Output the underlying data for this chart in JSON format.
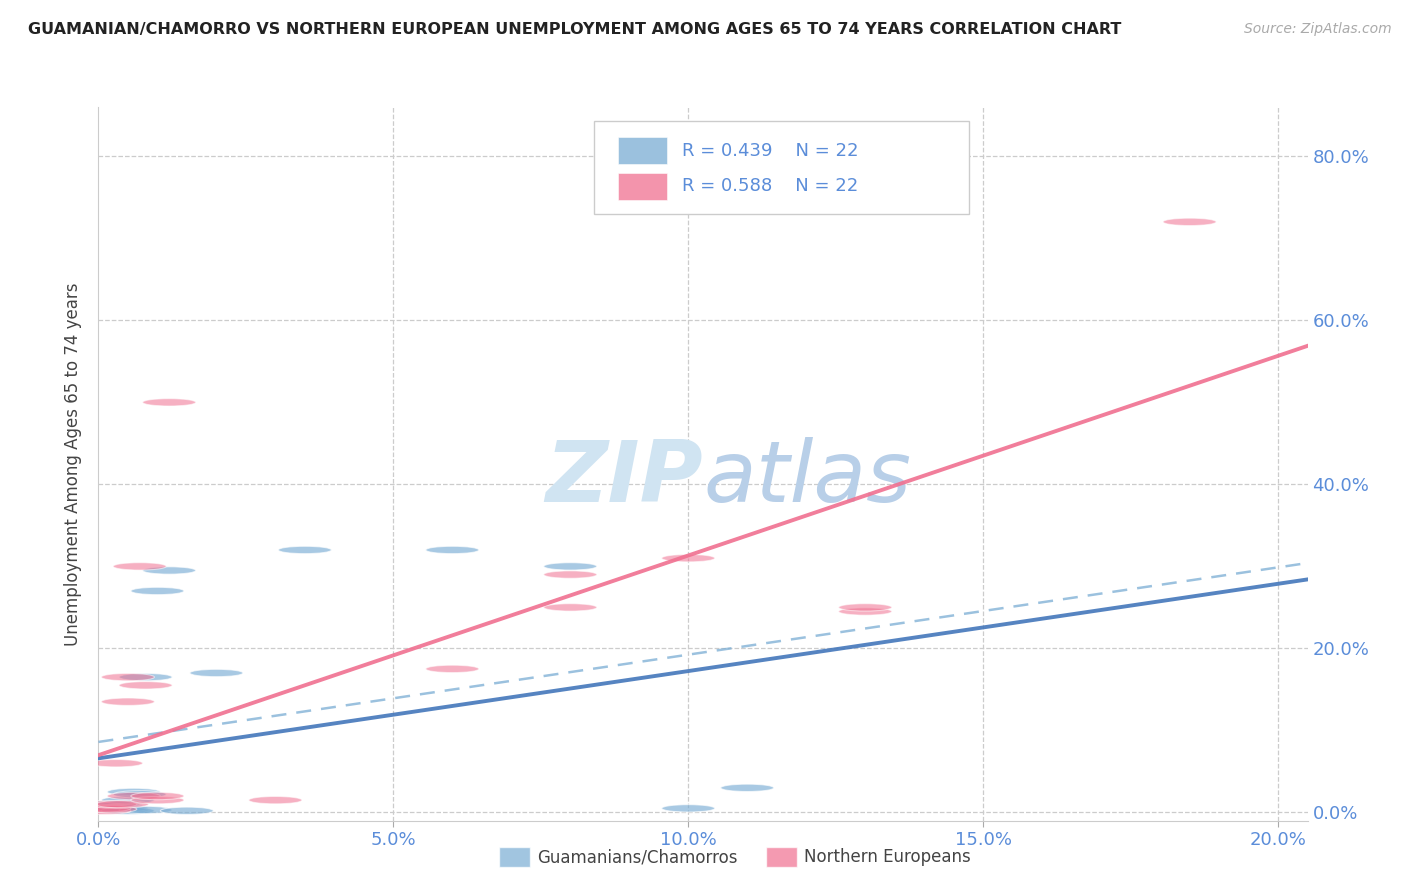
{
  "title": "GUAMANIAN/CHAMORRO VS NORTHERN EUROPEAN UNEMPLOYMENT AMONG AGES 65 TO 74 YEARS CORRELATION CHART",
  "source": "Source: ZipAtlas.com",
  "ylabel": "Unemployment Among Ages 65 to 74 years",
  "legend_label1": "Guamanians/Chamorros",
  "legend_label2": "Northern Europeans",
  "R1": "R = 0.439",
  "N1": "N = 22",
  "R2": "R = 0.588",
  "N2": "N = 22",
  "color_blue": "#7aadd4",
  "color_pink": "#f07090",
  "color_axis_text": "#5b8dd9",
  "watermark_color": "#d0e4f2",
  "blue_points": [
    [
      0.001,
      0.005
    ],
    [
      0.002,
      0.003
    ],
    [
      0.002,
      0.01
    ],
    [
      0.003,
      0.005
    ],
    [
      0.003,
      0.008
    ],
    [
      0.004,
      0.003
    ],
    [
      0.004,
      0.005
    ],
    [
      0.005,
      0.002
    ],
    [
      0.005,
      0.015
    ],
    [
      0.006,
      0.025
    ],
    [
      0.007,
      0.022
    ],
    [
      0.008,
      0.003
    ],
    [
      0.008,
      0.165
    ],
    [
      0.01,
      0.27
    ],
    [
      0.012,
      0.295
    ],
    [
      0.015,
      0.002
    ],
    [
      0.02,
      0.17
    ],
    [
      0.035,
      0.32
    ],
    [
      0.06,
      0.32
    ],
    [
      0.08,
      0.3
    ],
    [
      0.1,
      0.005
    ],
    [
      0.11,
      0.03
    ]
  ],
  "pink_points": [
    [
      0.001,
      0.002
    ],
    [
      0.001,
      0.005
    ],
    [
      0.002,
      0.004
    ],
    [
      0.002,
      0.01
    ],
    [
      0.003,
      0.06
    ],
    [
      0.004,
      0.01
    ],
    [
      0.005,
      0.135
    ],
    [
      0.005,
      0.165
    ],
    [
      0.006,
      0.02
    ],
    [
      0.007,
      0.3
    ],
    [
      0.008,
      0.155
    ],
    [
      0.01,
      0.015
    ],
    [
      0.01,
      0.02
    ],
    [
      0.012,
      0.5
    ],
    [
      0.03,
      0.015
    ],
    [
      0.06,
      0.175
    ],
    [
      0.08,
      0.25
    ],
    [
      0.08,
      0.29
    ],
    [
      0.1,
      0.31
    ],
    [
      0.13,
      0.245
    ],
    [
      0.13,
      0.25
    ],
    [
      0.185,
      0.72
    ]
  ],
  "xlim": [
    0.0,
    0.205
  ],
  "ylim": [
    -0.01,
    0.86
  ],
  "xtick_positions": [
    0.0,
    0.05,
    0.1,
    0.15,
    0.2
  ],
  "ytick_positions": [
    0.0,
    0.2,
    0.4,
    0.6,
    0.8
  ],
  "blue_line_slope": 2.55,
  "blue_line_intercept": 0.002,
  "pink_line_slope": 3.2,
  "pink_line_intercept": 0.002
}
